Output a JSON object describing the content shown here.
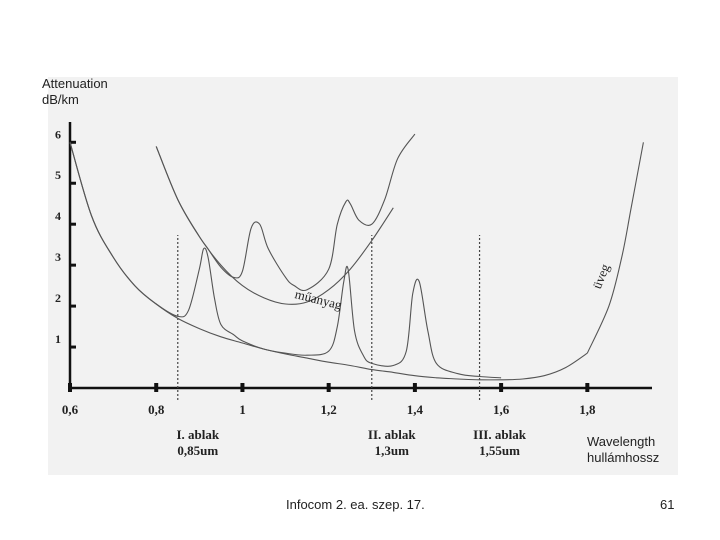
{
  "chart_data": {
    "type": "line",
    "ylabel": [
      "Attenuation",
      "dB/km"
    ],
    "xlabel": [
      "Wavelength",
      "hullámhossz"
    ],
    "xlim": [
      0.6,
      1.95
    ],
    "ylim": [
      0,
      6.3
    ],
    "x_ticks": [
      "0,6",
      "0,8",
      "1",
      "1,2",
      "1,4",
      "1,6",
      "1,8"
    ],
    "x_tick_values": [
      0.6,
      0.8,
      1.0,
      1.2,
      1.4,
      1.6,
      1.8
    ],
    "y_ticks": [
      "1",
      "2",
      "3",
      "4",
      "5",
      "6"
    ],
    "y_tick_values": [
      1,
      2,
      3,
      4,
      5,
      6
    ],
    "series": [
      {
        "name": "",
        "x": [
          0.6,
          0.65,
          0.7,
          0.75,
          0.8,
          0.85,
          0.9,
          0.95,
          1.0,
          1.05,
          1.1,
          1.15,
          1.2,
          1.25,
          1.3,
          1.35,
          1.4,
          1.45,
          1.5,
          1.55,
          1.6,
          1.65,
          1.7,
          1.75,
          1.8
        ],
        "values": [
          6.0,
          4.2,
          3.2,
          2.5,
          2.05,
          1.7,
          1.45,
          1.25,
          1.1,
          0.95,
          0.83,
          0.73,
          0.63,
          0.55,
          0.45,
          0.38,
          0.3,
          0.25,
          0.22,
          0.2,
          0.2,
          0.22,
          0.3,
          0.5,
          0.85
        ]
      },
      {
        "name": "",
        "x": [
          0.6,
          0.65,
          0.7,
          0.75,
          0.8,
          0.85,
          0.875,
          0.9,
          0.91,
          0.92,
          0.935,
          0.95,
          0.98,
          1.0,
          1.05,
          1.1,
          1.15,
          1.2,
          1.22,
          1.235,
          1.245,
          1.26,
          1.28,
          1.3,
          1.35,
          1.38,
          1.395,
          1.41,
          1.43,
          1.45,
          1.5,
          1.55,
          1.6
        ],
        "values": [
          6.0,
          4.2,
          3.2,
          2.5,
          2.05,
          1.75,
          1.9,
          2.9,
          3.4,
          3.2,
          2.2,
          1.55,
          1.3,
          1.15,
          0.95,
          0.85,
          0.8,
          0.9,
          1.5,
          2.6,
          2.9,
          1.4,
          0.8,
          0.6,
          0.55,
          0.9,
          2.3,
          2.6,
          1.4,
          0.6,
          0.35,
          0.28,
          0.25
        ]
      },
      {
        "name": "",
        "x": [
          0.8,
          0.85,
          0.9,
          0.92,
          0.95,
          0.98,
          1.0,
          1.02,
          1.04,
          1.06,
          1.1,
          1.12,
          1.15,
          1.2,
          1.22,
          1.24,
          1.25,
          1.27,
          1.3,
          1.33,
          1.36,
          1.4
        ],
        "values": [
          5.9,
          4.6,
          3.7,
          3.4,
          2.95,
          2.7,
          2.85,
          3.9,
          4.0,
          3.4,
          2.7,
          2.5,
          2.4,
          2.9,
          4.0,
          4.55,
          4.5,
          4.1,
          4.0,
          4.6,
          5.6,
          6.2
        ]
      },
      {
        "name": "",
        "x": [
          0.8,
          0.85,
          0.9,
          0.95,
          1.0,
          1.05,
          1.1,
          1.15,
          1.2,
          1.25,
          1.3,
          1.35
        ],
        "values": [
          5.9,
          4.6,
          3.7,
          3.0,
          2.5,
          2.2,
          2.05,
          2.1,
          2.4,
          2.9,
          3.6,
          4.4
        ]
      },
      {
        "name": "",
        "x": [
          1.8,
          1.85,
          1.88,
          1.9,
          1.93
        ],
        "values": [
          0.85,
          2.0,
          3.2,
          4.3,
          6.0
        ]
      }
    ],
    "annotations": [
      {
        "text": "műanyag",
        "x": 1.12,
        "y": 2.2
      },
      {
        "text": "üveg",
        "x": 1.83,
        "y": 2.4
      }
    ],
    "windows": [
      {
        "label": "I. ablak",
        "sublabel": "0,85um",
        "x": 0.85
      },
      {
        "label": "II. ablak",
        "sublabel": "1,3um",
        "x": 1.3
      },
      {
        "label": "III. ablak",
        "sublabel": "1,55um",
        "x": 1.55
      }
    ]
  },
  "footer": {
    "text": "Infocom 2. ea. szep. 17.",
    "page_number": "61"
  }
}
